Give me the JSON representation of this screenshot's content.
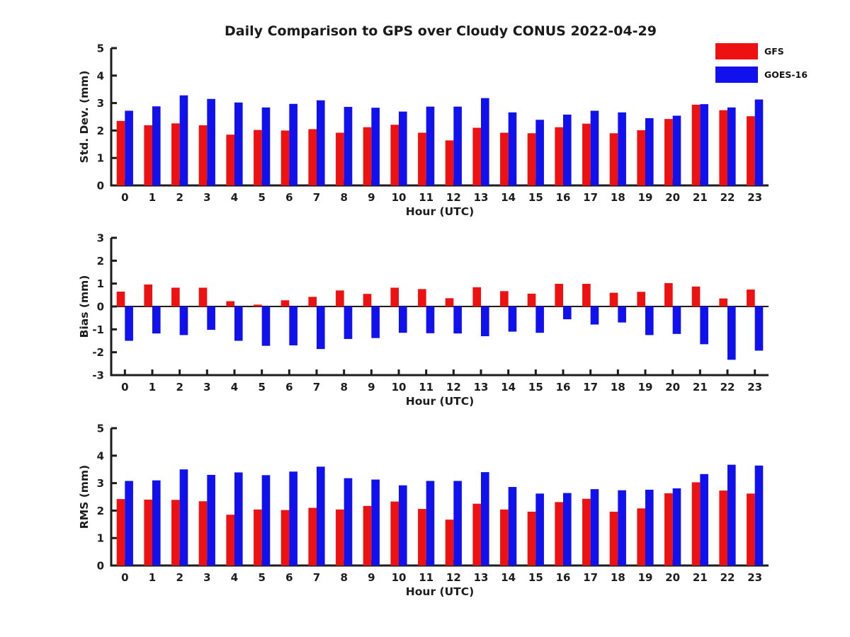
{
  "title": "Daily Comparison to GPS over Cloudy CONUS 2022-04-29",
  "legend": {
    "items": [
      {
        "label": "GFS",
        "color": "#ee1111"
      },
      {
        "label": "GOES-16",
        "color": "#1111ee"
      }
    ]
  },
  "axis_color": "#1c1c1c",
  "chart_data": [
    {
      "type": "bar",
      "name": "std-dev",
      "ylabel": "Std. Dev. (mm)",
      "xlabel": "Hour (UTC)",
      "ylim": [
        0,
        5
      ],
      "yticks": [
        0,
        1,
        2,
        3,
        4,
        5
      ],
      "grid": false,
      "legend_position": "upper-right-outside",
      "categories": [
        "0",
        "1",
        "2",
        "3",
        "4",
        "5",
        "6",
        "7",
        "8",
        "9",
        "10",
        "11",
        "12",
        "13",
        "14",
        "15",
        "16",
        "17",
        "18",
        "19",
        "20",
        "21",
        "22",
        "23"
      ],
      "series": [
        {
          "name": "GFS",
          "color": "#ee1111",
          "values": [
            2.35,
            2.19,
            2.26,
            2.19,
            1.85,
            2.02,
            2.0,
            2.05,
            1.92,
            2.12,
            2.21,
            1.92,
            1.64,
            2.1,
            1.92,
            1.9,
            2.12,
            2.25,
            1.9,
            2.01,
            2.42,
            2.94,
            2.74,
            2.52
          ]
        },
        {
          "name": "GOES-16",
          "color": "#1111ee",
          "values": [
            2.72,
            2.88,
            3.28,
            3.15,
            3.02,
            2.84,
            2.97,
            3.1,
            2.86,
            2.83,
            2.69,
            2.87,
            2.87,
            3.18,
            2.66,
            2.39,
            2.58,
            2.72,
            2.66,
            2.45,
            2.54,
            2.96,
            2.84,
            3.13
          ]
        }
      ]
    },
    {
      "type": "bar",
      "name": "bias",
      "ylabel": "Bias (mm)",
      "xlabel": "Hour (UTC)",
      "ylim": [
        -3,
        3
      ],
      "yticks": [
        -3,
        -2,
        -1,
        0,
        1,
        2,
        3
      ],
      "grid": false,
      "zero_line": true,
      "categories": [
        "0",
        "1",
        "2",
        "3",
        "4",
        "5",
        "6",
        "7",
        "8",
        "9",
        "10",
        "11",
        "12",
        "13",
        "14",
        "15",
        "16",
        "17",
        "18",
        "19",
        "20",
        "21",
        "22",
        "23"
      ],
      "series": [
        {
          "name": "GFS",
          "color": "#ee1111",
          "values": [
            0.65,
            0.96,
            0.82,
            0.82,
            0.23,
            0.08,
            0.27,
            0.42,
            0.7,
            0.55,
            0.82,
            0.76,
            0.36,
            0.84,
            0.67,
            0.56,
            0.99,
            0.99,
            0.6,
            0.64,
            1.02,
            0.87,
            0.35,
            0.74
          ]
        },
        {
          "name": "GOES-16",
          "color": "#1111ee",
          "values": [
            -1.5,
            -1.18,
            -1.25,
            -1.02,
            -1.5,
            -1.72,
            -1.7,
            -1.86,
            -1.42,
            -1.38,
            -1.15,
            -1.17,
            -1.18,
            -1.3,
            -1.1,
            -1.15,
            -0.56,
            -0.79,
            -0.7,
            -1.25,
            -1.2,
            -1.65,
            -2.33,
            -1.93
          ]
        }
      ]
    },
    {
      "type": "bar",
      "name": "rms",
      "ylabel": "RMS (mm)",
      "xlabel": "Hour (UTC)",
      "ylim": [
        0,
        5
      ],
      "yticks": [
        0,
        1,
        2,
        3,
        4,
        5
      ],
      "grid": false,
      "categories": [
        "0",
        "1",
        "2",
        "3",
        "4",
        "5",
        "6",
        "7",
        "8",
        "9",
        "10",
        "11",
        "12",
        "13",
        "14",
        "15",
        "16",
        "17",
        "18",
        "19",
        "20",
        "21",
        "22",
        "23"
      ],
      "series": [
        {
          "name": "GFS",
          "color": "#ee1111",
          "values": [
            2.42,
            2.4,
            2.39,
            2.34,
            1.85,
            2.04,
            2.02,
            2.1,
            2.04,
            2.17,
            2.33,
            2.06,
            1.67,
            2.25,
            2.04,
            1.96,
            2.31,
            2.43,
            1.96,
            2.08,
            2.63,
            3.03,
            2.73,
            2.62
          ]
        },
        {
          "name": "GOES-16",
          "color": "#1111ee",
          "values": [
            3.08,
            3.1,
            3.5,
            3.3,
            3.39,
            3.29,
            3.42,
            3.6,
            3.18,
            3.13,
            2.92,
            3.08,
            3.08,
            3.4,
            2.86,
            2.62,
            2.64,
            2.78,
            2.74,
            2.76,
            2.81,
            3.33,
            3.67,
            3.64
          ]
        }
      ]
    }
  ]
}
